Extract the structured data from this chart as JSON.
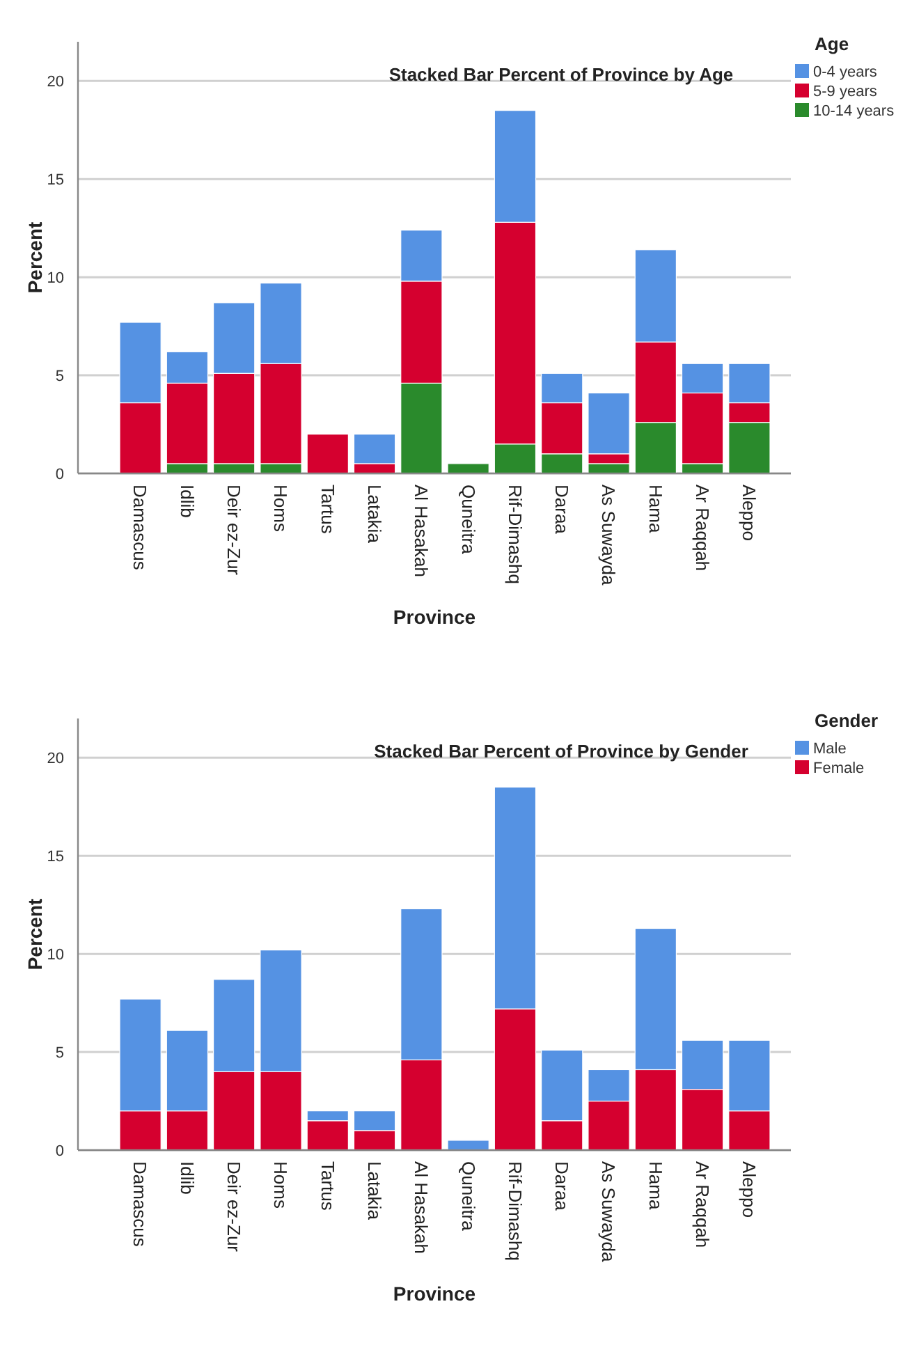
{
  "chart_data": [
    {
      "type": "bar",
      "title": "Stacked Bar Percent of Province by Age",
      "xlabel": "Province",
      "ylabel": "Percent",
      "legend_title": "Age",
      "stacked": true,
      "legend": "top right",
      "grid": "y",
      "ylim": [
        0,
        22
      ],
      "yticks": [
        0,
        5,
        10,
        15,
        20
      ],
      "categories": [
        "Damascus",
        "Idlib",
        "Deir ez-Zur",
        "Homs",
        "Tartus",
        "Latakia",
        "Al Hasakah",
        "Quneitra",
        "Rif-Dimashq",
        "Daraa",
        "As Suwayda",
        "Hama",
        "Ar Raqqah",
        "Aleppo"
      ],
      "series": [
        {
          "name": "10-14 years",
          "color": "#2a8a2c",
          "values": [
            0,
            0.5,
            0.5,
            0.5,
            0,
            0,
            4.6,
            0.5,
            1.5,
            1.0,
            0.5,
            2.6,
            0.5,
            2.6
          ]
        },
        {
          "name": "5-9 years",
          "color": "#d5002f",
          "values": [
            3.6,
            4.1,
            4.6,
            5.1,
            2.0,
            0.5,
            5.2,
            0,
            11.3,
            2.6,
            0.5,
            4.1,
            3.6,
            1.0
          ]
        },
        {
          "name": "0-4 years",
          "color": "#5592e3",
          "values": [
            4.1,
            1.6,
            3.6,
            4.1,
            0,
            1.5,
            2.6,
            0,
            5.7,
            1.5,
            3.1,
            4.7,
            1.5,
            2.0
          ]
        }
      ]
    },
    {
      "type": "bar",
      "title": "Stacked Bar Percent of Province by Gender",
      "xlabel": "Province",
      "ylabel": "Percent",
      "legend_title": "Gender",
      "stacked": true,
      "legend": "top right",
      "grid": "y",
      "ylim": [
        0,
        22
      ],
      "yticks": [
        0,
        5,
        10,
        15,
        20
      ],
      "categories": [
        "Damascus",
        "Idlib",
        "Deir ez-Zur",
        "Homs",
        "Tartus",
        "Latakia",
        "Al Hasakah",
        "Quneitra",
        "Rif-Dimashq",
        "Daraa",
        "As Suwayda",
        "Hama",
        "Ar Raqqah",
        "Aleppo"
      ],
      "series": [
        {
          "name": "Female",
          "color": "#d5002f",
          "values": [
            2.0,
            2.0,
            4.0,
            4.0,
            1.5,
            1.0,
            4.6,
            0,
            7.2,
            1.5,
            2.5,
            4.1,
            3.1,
            2.0
          ]
        },
        {
          "name": "Male",
          "color": "#5592e3",
          "values": [
            5.7,
            4.1,
            4.7,
            6.2,
            0.5,
            1.0,
            7.7,
            0.5,
            11.3,
            3.6,
            1.6,
            7.2,
            2.5,
            3.6
          ]
        }
      ]
    }
  ]
}
